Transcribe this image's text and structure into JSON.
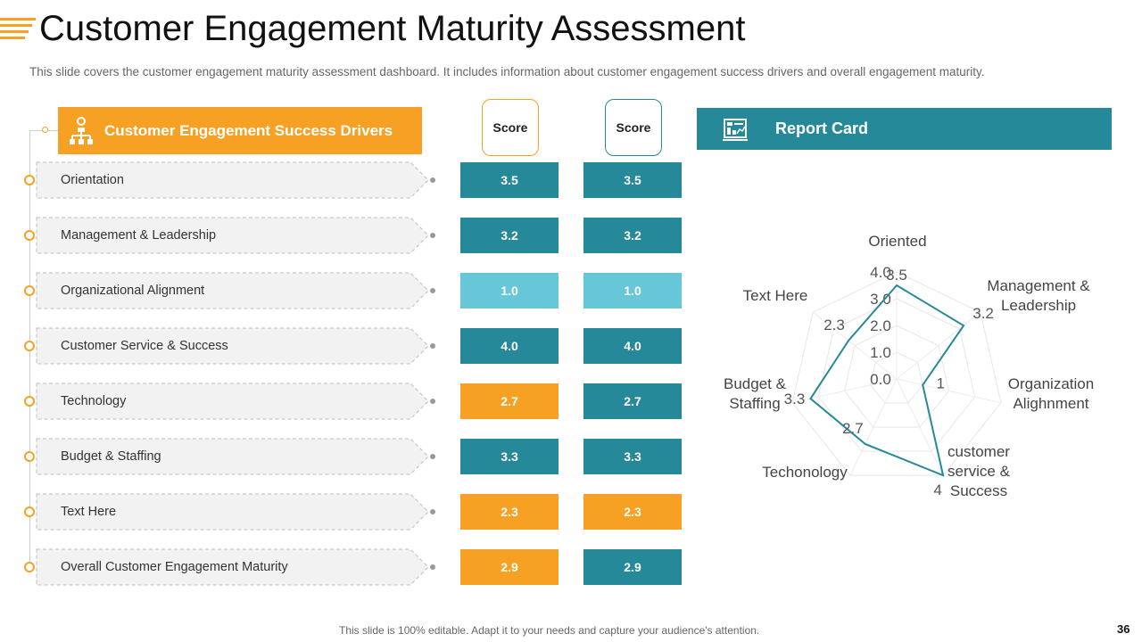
{
  "title": "Customer Engagement Maturity Assessment",
  "subtitle": "This slide covers the customer engagement maturity assessment dashboard. It includes information about customer engagement success drivers and overall engagement maturity.",
  "drivers_header": "Customer Engagement Success Drivers",
  "score_headers": [
    "Score",
    "Score"
  ],
  "colors": {
    "teal": "#25899a",
    "light_teal": "#67c7d8",
    "orange": "#f6a124"
  },
  "rows": [
    {
      "label": "Orientation",
      "score1": "3.5",
      "color1": "#25899a",
      "score2": "3.5",
      "color2": "#25899a"
    },
    {
      "label": "Management & Leadership",
      "score1": "3.2",
      "color1": "#25899a",
      "score2": "3.2",
      "color2": "#25899a"
    },
    {
      "label": "Organizational Alignment",
      "score1": "1.0",
      "color1": "#67c7d8",
      "score2": "1.0",
      "color2": "#67c7d8"
    },
    {
      "label": "Customer Service & Success",
      "score1": "4.0",
      "color1": "#25899a",
      "score2": "4.0",
      "color2": "#25899a"
    },
    {
      "label": "Technology",
      "score1": "2.7",
      "color1": "#f6a124",
      "score2": "2.7",
      "color2": "#25899a"
    },
    {
      "label": "Budget & Staffing",
      "score1": "3.3",
      "color1": "#25899a",
      "score2": "3.3",
      "color2": "#25899a"
    },
    {
      "label": "Text Here",
      "score1": "2.3",
      "color1": "#f6a124",
      "score2": "2.3",
      "color2": "#f6a124"
    },
    {
      "label": "Overall Customer Engagement Maturity",
      "score1": "2.9",
      "color1": "#f6a124",
      "score2": "2.9",
      "color2": "#25899a"
    }
  ],
  "report_header": "Report Card",
  "chart_data": {
    "type": "radar",
    "axes": [
      {
        "label": "Oriented",
        "value": 3.5,
        "value_label": "3.5"
      },
      {
        "label": "Management & Leadership",
        "value": 3.2,
        "value_label": "3.2"
      },
      {
        "label": "Organization Alighnment",
        "value": 1,
        "value_label": "1"
      },
      {
        "label": "customer service & Success",
        "value": 4,
        "value_label": "4"
      },
      {
        "label": "Techonology",
        "value": 2.7,
        "value_label": "2.7"
      },
      {
        "label": "Budget & Staffing",
        "value": 3.3,
        "value_label": "3.3"
      },
      {
        "label": "Text Here",
        "value": 2.3,
        "value_label": "2.3"
      }
    ],
    "ticks": [
      "0.0",
      "1.0",
      "2.0",
      "3.0",
      "4.0"
    ],
    "max": 4
  },
  "footer": "This slide is 100% editable. Adapt it to your needs and capture your audience's attention.",
  "page_number": "36"
}
